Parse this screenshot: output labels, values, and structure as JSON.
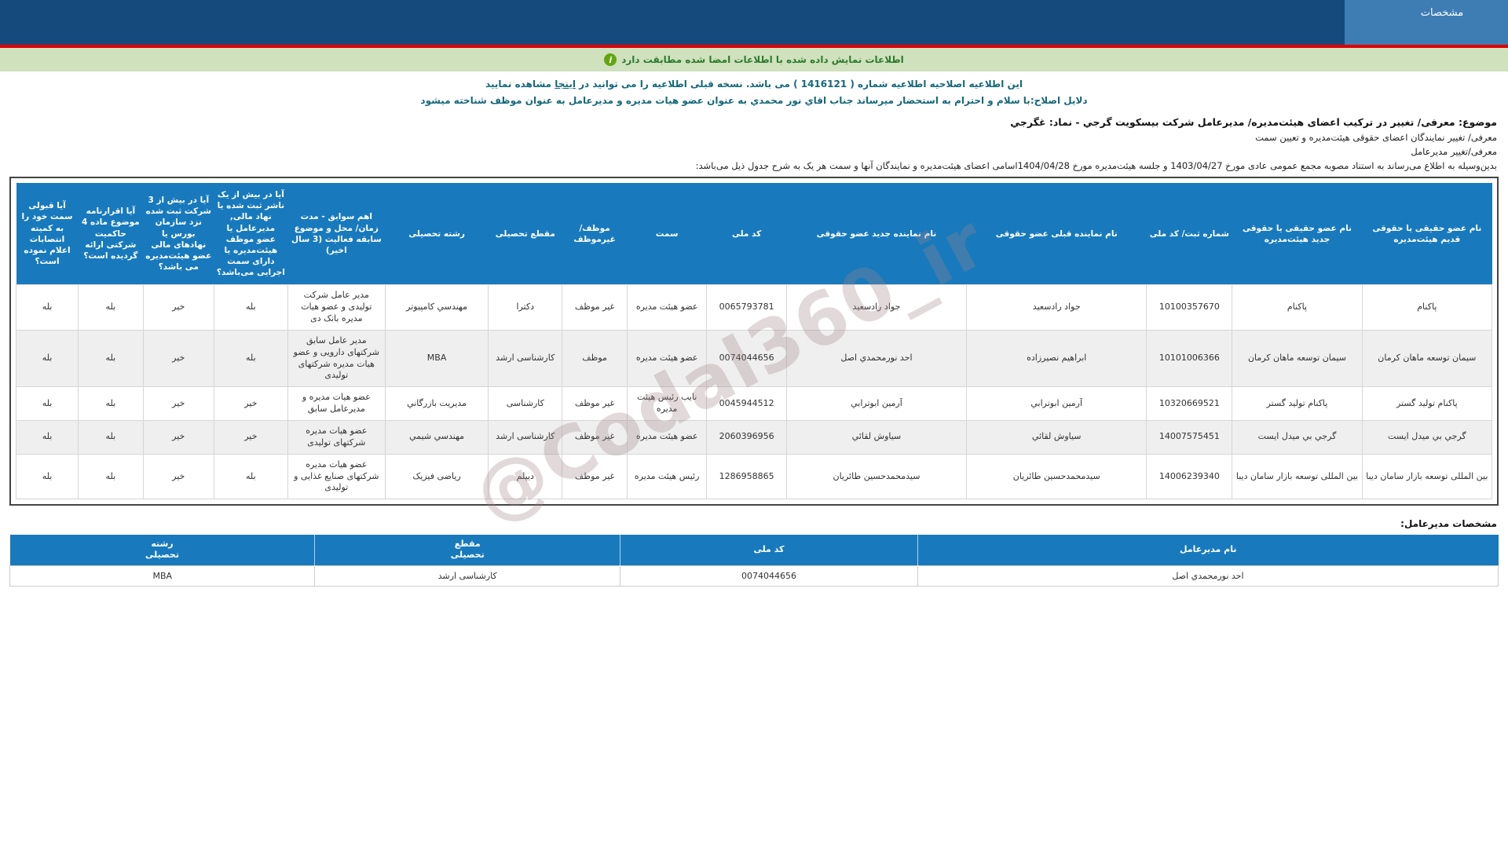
{
  "header": {
    "tab_label": "مشخصات"
  },
  "alert": {
    "icon": "info-icon",
    "text": "اطلاعات نمایش داده شده با اطلاعات امضا شده مطابقت دارد"
  },
  "notice": {
    "line_before": "این اطلاعیه اصلاحیه اطلاعیه شماره ( 1416121 ) می باشد. نسخه قبلی اطلاعیه را می توانید در ",
    "link_text": "اینجا",
    "line_after": " مشاهده نمایید",
    "reason": "دلایل اصلاح:با سلام و احترام به استحضار میرساند جناب اقاي نور محمدي به عنوان عضو هیات مدیره و مدیرعامل به عنوان موظف شناخته میشود"
  },
  "subject": {
    "title": "موضوع: معرفی/ تغییر در ترکیب اعضای هیئت‌مدیره/ مدیرعامل شرکت بیسکویت گرجي - نماد: غگرجي",
    "line2": "معرفی/ تغییر نمایندگان اعضای حقوقی هیئت‌مدیره و تعیین سمت",
    "line3": "معرفی/تغییر مدیرعامل",
    "intro": "بدین‌وسیله به اطلاع می‌رساند به استناد مصوبه مجمع عمومی عادی مورخ  1403/04/27  و جلسه هیئت‌مدیره مورخ 1404/04/28اسامی اعضای هیئت‌مدیره و نمایندگان آنها و سمت هر یک به شرح جدول ذیل می‌باشد:"
  },
  "board_table": {
    "headers": [
      "نام عضو حقیقی یا حقوقی قدیم هیئت‌مدیره",
      "نام عضو حقیقی یا حقوقی جدید هیئت‌مدیره",
      "شماره ثبت/ کد ملی",
      "نام نماینده قبلی عضو حقوقی",
      "نام نماینده جدید عضو حقوقی",
      "کد ملی",
      "سمت",
      "موظف/ غیرموظف",
      "مقطع تحصیلی",
      "رشته تحصیلی",
      "اهم سوابق - مدت زمان/ محل و موضوع سابقه فعالیت (3 سال اخیر)",
      "آیا در بیش از یک ناشر ثبت شده یا نهاد مالی, مدیرعامل یا عضو موظف هیئت‌مدیره یا دارای سمت اجرایی می‌باشد؟",
      "آیا در بیش از 3 شرکت ثبت شده نزد سازمان بورس یا نهادهای مالی عضو هیئت‌مدیره می باشد؟",
      "آیا اقرارنامه موضوع ماده 4 حاکمیت شرکتی ارائه گردیده است؟",
      "آیا قبولی سمت خود را به کمیته انتصابات اعلام نموده است؟"
    ],
    "rows": [
      [
        "پاکنام",
        "پاکنام",
        "10100357670",
        "جواد رادسعید",
        "جواد رادسعید",
        "0065793781",
        "عضو هیئت مدیره",
        "غیر موظف",
        "دکترا",
        "مهندسي کامپیوتر",
        "مدیر عامل شرکت تولیدی و عضو هیات مدیره بانک دی",
        "بله",
        "خیر",
        "بله",
        "بله"
      ],
      [
        "سیمان توسعه ماهان کرمان",
        "سیمان توسعه ماهان کرمان",
        "10101006366",
        "ابراهیم نصیرزاده",
        "احد نورمحمدي اصل",
        "0074044656",
        "عضو هیئت مدیره",
        "موظف",
        "کارشناسی ارشد",
        "MBA",
        "مدیر عامل سابق شرکتهای دارویی و عضو هیات مدیره شرکتهای تولیدی",
        "بله",
        "خیر",
        "بله",
        "بله"
      ],
      [
        "پاکنام تولید گستر",
        "پاکنام تولید گستر",
        "10320669521",
        "آرمین ابوترابي",
        "آرمین ابوترابي",
        "0045944512",
        "نایب رئیس هیئت مدیره",
        "غیر موظف",
        "کارشناسی",
        "مدیریت بازرگاني",
        "عضو هیات مدیره و مدیرعامل سابق",
        "خیر",
        "خیر",
        "بله",
        "بله"
      ],
      [
        "گرجي بي میدل ایست",
        "گرجي بي میدل ایست",
        "14007575451",
        "سیاوش لقائي",
        "سیاوش لقائي",
        "2060396956",
        "عضو هیئت مدیره",
        "غیر موظف",
        "کارشناسی ارشد",
        "مهندسي شیمي",
        "عضو هیات مدیره شرکتهای تولیدی",
        "خیر",
        "خیر",
        "بله",
        "بله"
      ],
      [
        "بین المللی توسعه بازار سامان دیبا",
        "بین المللی توسعه بازار سامان دیبا",
        "14006239340",
        "سیدمحمدحسین طائریان",
        "سیدمحمدحسین طائریان",
        "1286958865",
        "رئیس هیئت مدیره",
        "غیر موظف",
        "دیپلم",
        "ریاضی فیزیک",
        "عضو هیات مدیره شرکتهای صنایع غذایی و تولیدی",
        "بله",
        "خیر",
        "بله",
        "بله"
      ]
    ]
  },
  "ceo_section": {
    "title": "مشخصات مدیرعامل:",
    "headers": [
      "نام مدیرعامل",
      "کد ملی",
      "مقطع\nتحصیلی",
      "رشته\nتحصیلی"
    ],
    "row": [
      "احد نورمحمدي اصل",
      "0074044656",
      "کارشناسی ارشد",
      "MBA"
    ]
  },
  "watermark": "@Codal360_ir",
  "colors": {
    "header_navy": "#154a7d",
    "tab_blue": "#3d7db4",
    "red_line": "#e10000",
    "alert_green_bg": "#cfe1bd",
    "alert_green_text": "#2c7a2c",
    "info_icon_green": "#61a60f",
    "notice_teal": "#15687a",
    "table_header_blue": "#187abd",
    "row_alt_gray": "#efefef"
  }
}
